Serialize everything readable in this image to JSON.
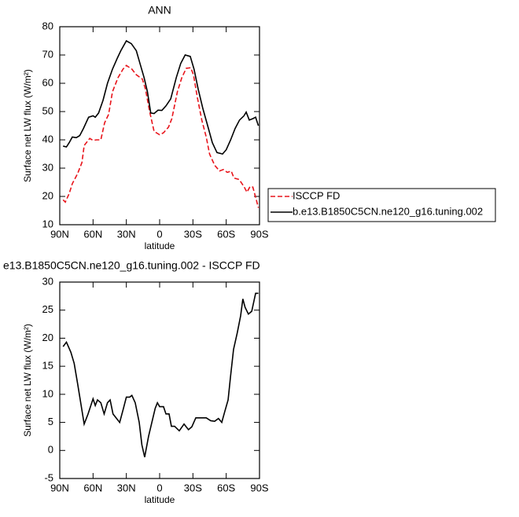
{
  "chart_data": [
    {
      "type": "line",
      "title": "ANN",
      "xlabel": "latitude",
      "ylabel": "Surface net LW flux (W/m²)",
      "xlim": [
        90,
        -90
      ],
      "xticks": [
        {
          "value": 90,
          "label": "90N"
        },
        {
          "value": 60,
          "label": "60N"
        },
        {
          "value": 30,
          "label": "30N"
        },
        0,
        {
          "value": -30,
          "label": "30S"
        },
        {
          "value": -60,
          "label": "60S"
        },
        {
          "value": -90,
          "label": "90S"
        }
      ],
      "ylim": [
        10,
        80
      ],
      "yticks": [
        10,
        20,
        30,
        40,
        50,
        60,
        70,
        80
      ],
      "legend": "right",
      "series": [
        {
          "name": "ISCCP FD",
          "color": "#e8141b",
          "dashed": true,
          "x": [
            87,
            85,
            81.5,
            78.7,
            74,
            70,
            68,
            63,
            60,
            57,
            53,
            49.6,
            46,
            42.5,
            37.5,
            33,
            30,
            25,
            21,
            15.6,
            12.8,
            9,
            5,
            0,
            -3.5,
            -8,
            -11,
            -16,
            -20,
            -24,
            -28,
            -30.5,
            -34,
            -38,
            -42,
            -45,
            -49.6,
            -54,
            -57.4,
            -61,
            -64.5,
            -67,
            -71.6,
            -76,
            -78.7,
            -81.5,
            -84,
            -87,
            -89
          ],
          "values": [
            18.8,
            18,
            21,
            24.5,
            28,
            32,
            38,
            40.5,
            39.8,
            40,
            40,
            46,
            49,
            57,
            62,
            65,
            66.3,
            65,
            63,
            61.5,
            58,
            50,
            43,
            41.8,
            42.5,
            44.5,
            47.5,
            57,
            62,
            65.3,
            65.5,
            63,
            55,
            47,
            41,
            35,
            31,
            29,
            29.5,
            28.5,
            29,
            26.5,
            26,
            23.5,
            21.5,
            23.5,
            23.3,
            19,
            16
          ]
        },
        {
          "name": "b.e13.B1850C5CN.ne120_g16.tuning.002",
          "color": "#000000",
          "dashed": false,
          "x": [
            87,
            84,
            81.5,
            78.7,
            75,
            72,
            68.7,
            64,
            60,
            58,
            55,
            51,
            47,
            42.5,
            38,
            35,
            30,
            25.5,
            21,
            17.7,
            14,
            11,
            8,
            5,
            1.4,
            -2,
            -5.7,
            -10,
            -15,
            -19,
            -23,
            -27.6,
            -31,
            -34.7,
            -39,
            -44,
            -47.5,
            -51.7,
            -56.7,
            -60,
            -64,
            -68,
            -72,
            -76,
            -78,
            -80.8,
            -84,
            -86.5,
            -89
          ],
          "values": [
            37.8,
            37.5,
            39,
            41,
            40.8,
            41.5,
            44,
            48,
            48.5,
            48,
            49.5,
            54,
            60,
            65,
            69,
            71.5,
            75,
            74,
            71.5,
            67,
            62,
            57,
            49.5,
            49.3,
            50.5,
            50.4,
            52,
            54.5,
            62,
            67,
            70,
            69.5,
            65,
            58,
            51,
            44,
            39,
            35.5,
            35,
            36.5,
            40,
            44,
            47,
            48.5,
            49.8,
            47,
            47.5,
            48,
            45
          ]
        }
      ]
    },
    {
      "type": "line",
      "title": "e13.B1850C5CN.ne120_g16.tuning.002 - ISCCP FD",
      "xlabel": "latitude",
      "ylabel": "Surface net LW flux (W/m²)",
      "xlim": [
        90,
        -90
      ],
      "xticks": [
        {
          "value": 90,
          "label": "90N"
        },
        {
          "value": 60,
          "label": "60N"
        },
        {
          "value": 30,
          "label": "30N"
        },
        0,
        {
          "value": -30,
          "label": "30S"
        },
        {
          "value": -60,
          "label": "60S"
        },
        {
          "value": -90,
          "label": "90S"
        }
      ],
      "ylim": [
        -5,
        30
      ],
      "yticks": [
        -5,
        0,
        5,
        10,
        15,
        20,
        25,
        30
      ],
      "series": [
        {
          "color": "#000000",
          "dashed": false,
          "x": [
            87,
            84,
            80,
            77,
            74,
            68,
            64.5,
            60,
            58,
            56,
            53,
            50,
            47,
            44.6,
            42,
            36,
            32.6,
            30,
            27,
            25,
            22,
            18.4,
            16,
            13.5,
            10,
            7,
            4,
            2,
            0,
            -3.5,
            -5.7,
            -8.5,
            -10.6,
            -13.5,
            -17.7,
            -22,
            -26,
            -29,
            -32.6,
            -37.6,
            -42,
            -46,
            -49.6,
            -53,
            -56,
            -58.8,
            -61.7,
            -63.8,
            -66.6,
            -70,
            -73,
            -75,
            -77,
            -80,
            -83,
            -86.5,
            -89
          ],
          "values": [
            18.5,
            19.3,
            17.5,
            15.5,
            12,
            4.7,
            6.5,
            9.2,
            8,
            9,
            8.5,
            6.5,
            8.5,
            9,
            6.5,
            5,
            7.5,
            9.5,
            9.5,
            9.8,
            8.5,
            5,
            1,
            -1.2,
            2.5,
            5,
            7.5,
            8.5,
            7.8,
            7.8,
            6.5,
            6.5,
            4.3,
            4.3,
            3.5,
            4.7,
            3.7,
            4.2,
            5.8,
            5.8,
            5.8,
            5.3,
            5.2,
            5.7,
            5,
            7,
            9,
            13,
            18,
            21,
            24,
            27,
            25.5,
            24.3,
            24.8,
            28,
            28
          ]
        }
      ]
    }
  ]
}
